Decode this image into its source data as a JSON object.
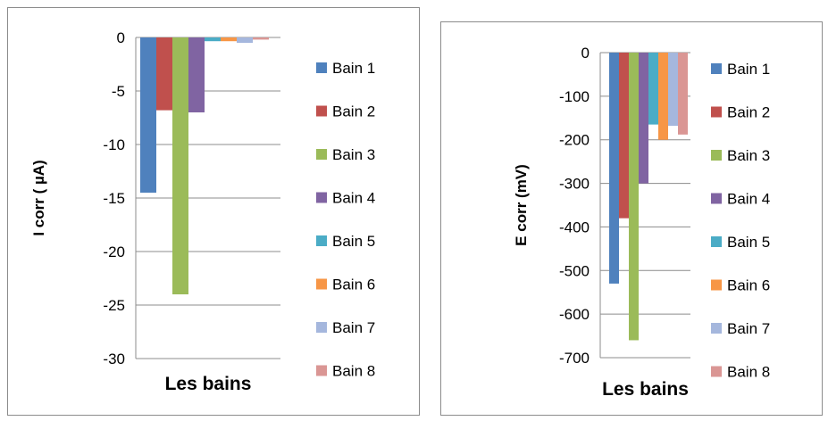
{
  "chart_data": [
    {
      "type": "bar",
      "title": "",
      "xlabel": "Les bains",
      "ylabel": "I corr ( µA)",
      "ylim": [
        -30,
        0
      ],
      "yticks": [
        0,
        -5,
        -10,
        -15,
        -20,
        -25,
        -30
      ],
      "grid": true,
      "legend_position": "right",
      "categories": [
        "Les bains"
      ],
      "series": [
        {
          "name": "Bain 1",
          "values": [
            -14.5
          ],
          "color": "#4F81BD"
        },
        {
          "name": "Bain 2",
          "values": [
            -6.8
          ],
          "color": "#C0504D"
        },
        {
          "name": "Bain 3",
          "values": [
            -24.0
          ],
          "color": "#9BBB59"
        },
        {
          "name": "Bain 4",
          "values": [
            -7.0
          ],
          "color": "#8064A2"
        },
        {
          "name": "Bain 5",
          "values": [
            -0.35
          ],
          "color": "#4BACC6"
        },
        {
          "name": "Bain 6",
          "values": [
            -0.35
          ],
          "color": "#F79646"
        },
        {
          "name": "Bain 7",
          "values": [
            -0.5
          ],
          "color": "#A5B7DD"
        },
        {
          "name": "Bain 8",
          "values": [
            -0.2
          ],
          "color": "#DA9694"
        }
      ]
    },
    {
      "type": "bar",
      "title": "",
      "xlabel": "Les bains",
      "ylabel": "E corr (mV)",
      "ylim": [
        -700,
        0
      ],
      "yticks": [
        0,
        -100,
        -200,
        -300,
        -400,
        -500,
        -600,
        -700
      ],
      "grid": true,
      "legend_position": "right",
      "categories": [
        "Les bains"
      ],
      "series": [
        {
          "name": "Bain 1",
          "values": [
            -530
          ],
          "color": "#4F81BD"
        },
        {
          "name": "Bain 2",
          "values": [
            -380
          ],
          "color": "#C0504D"
        },
        {
          "name": "Bain 3",
          "values": [
            -660
          ],
          "color": "#9BBB59"
        },
        {
          "name": "Bain 4",
          "values": [
            -300
          ],
          "color": "#8064A2"
        },
        {
          "name": "Bain 5",
          "values": [
            -165
          ],
          "color": "#4BACC6"
        },
        {
          "name": "Bain 6",
          "values": [
            -200
          ],
          "color": "#F79646"
        },
        {
          "name": "Bain 7",
          "values": [
            -168
          ],
          "color": "#A5B7DD"
        },
        {
          "name": "Bain 8",
          "values": [
            -188
          ],
          "color": "#DA9694"
        }
      ]
    }
  ]
}
